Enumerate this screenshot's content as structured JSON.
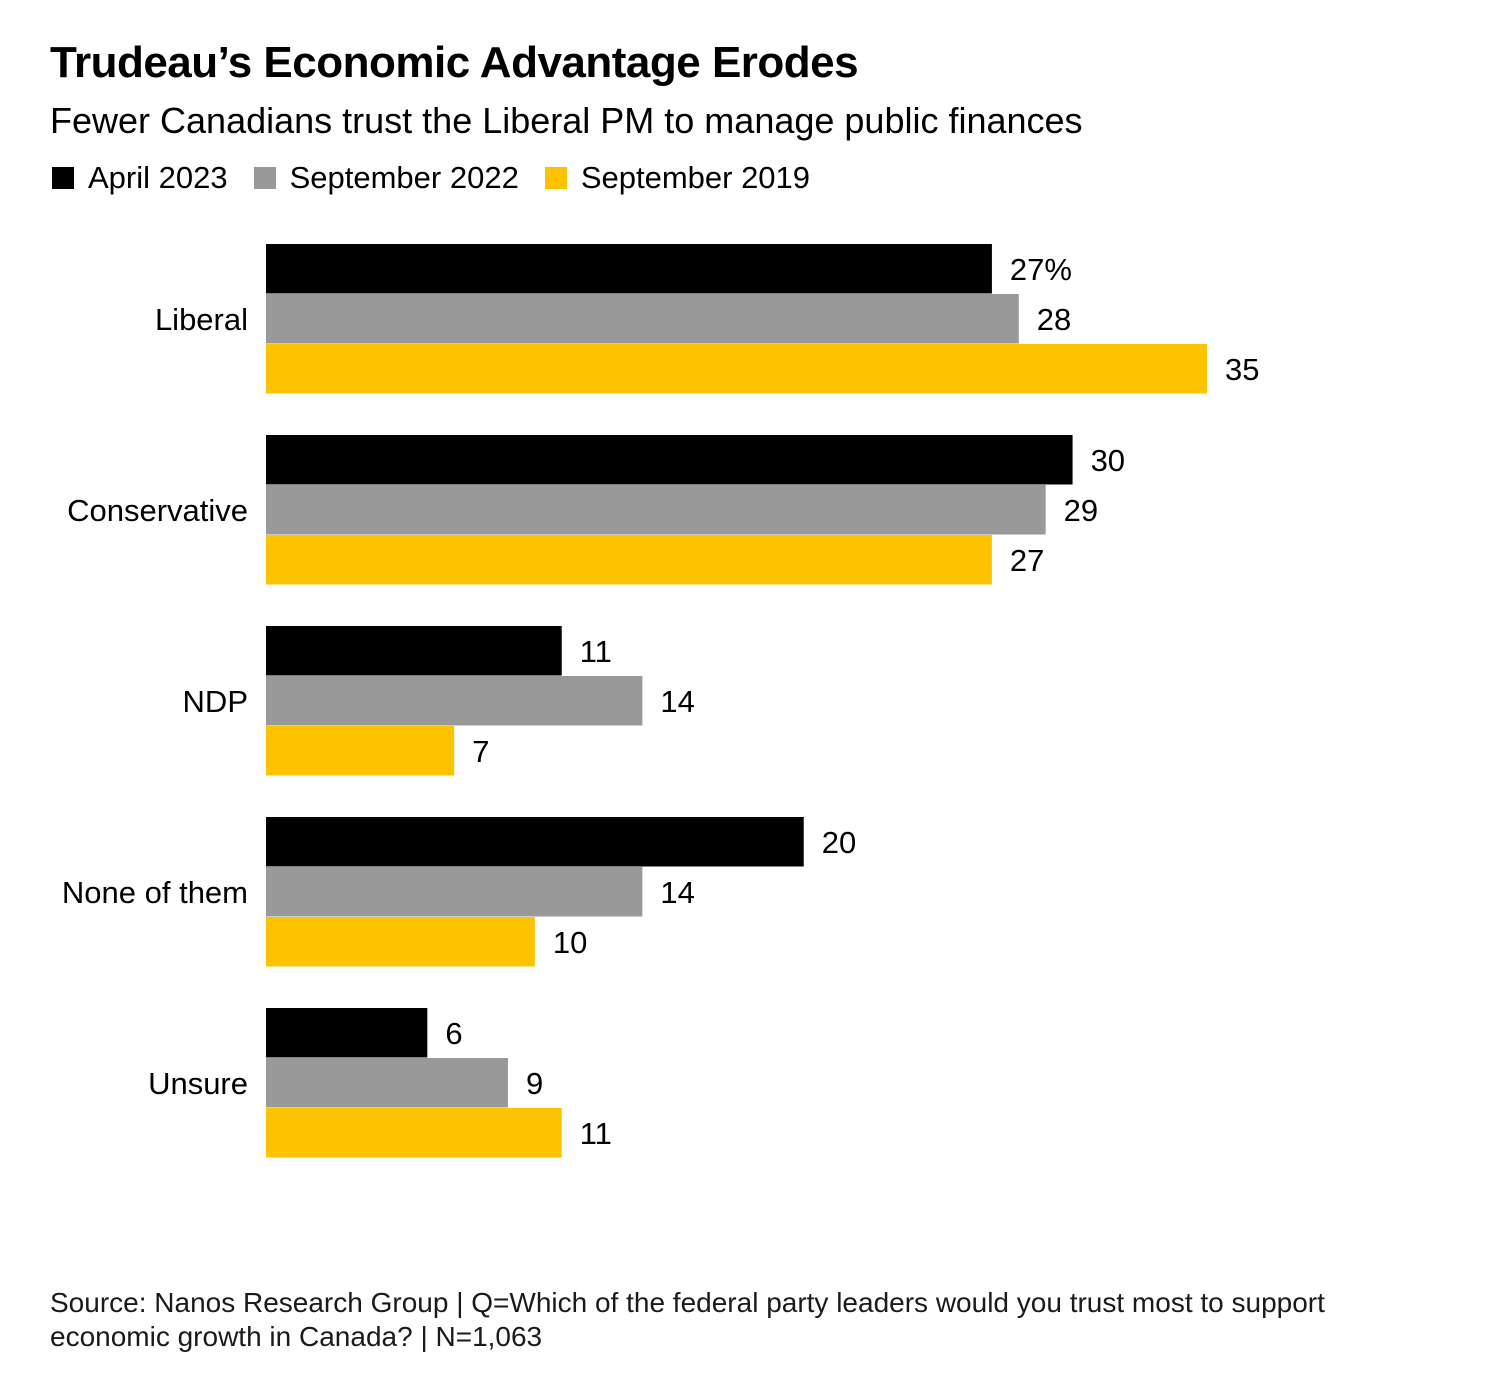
{
  "title": "Trudeau’s Economic Advantage Erodes",
  "subtitle": "Fewer Canadians trust the Liberal PM to manage public finances",
  "legend": [
    {
      "label": "April 2023",
      "color": "#000000"
    },
    {
      "label": "September 2022",
      "color": "#999999"
    },
    {
      "label": "September 2019",
      "color": "#fdc300"
    }
  ],
  "source": "Source: Nanos Research Group | Q=Which of the federal party leaders would you trust most to support economic growth in Canada? | N=1,063",
  "chart_data": {
    "type": "bar",
    "orientation": "horizontal",
    "categories": [
      "Liberal",
      "Conservative",
      "NDP",
      "None of them",
      "Unsure"
    ],
    "series": [
      {
        "name": "April 2023",
        "color": "#000000",
        "values": [
          27,
          30,
          11,
          20,
          6
        ]
      },
      {
        "name": "September 2022",
        "color": "#999999",
        "values": [
          28,
          29,
          14,
          14,
          9
        ]
      },
      {
        "name": "September 2019",
        "color": "#fdc300",
        "values": [
          35,
          27,
          7,
          10,
          11
        ]
      }
    ],
    "value_suffix_first": "%",
    "xlim": [
      0,
      35
    ],
    "grid": false,
    "legend_position": "top-left"
  }
}
